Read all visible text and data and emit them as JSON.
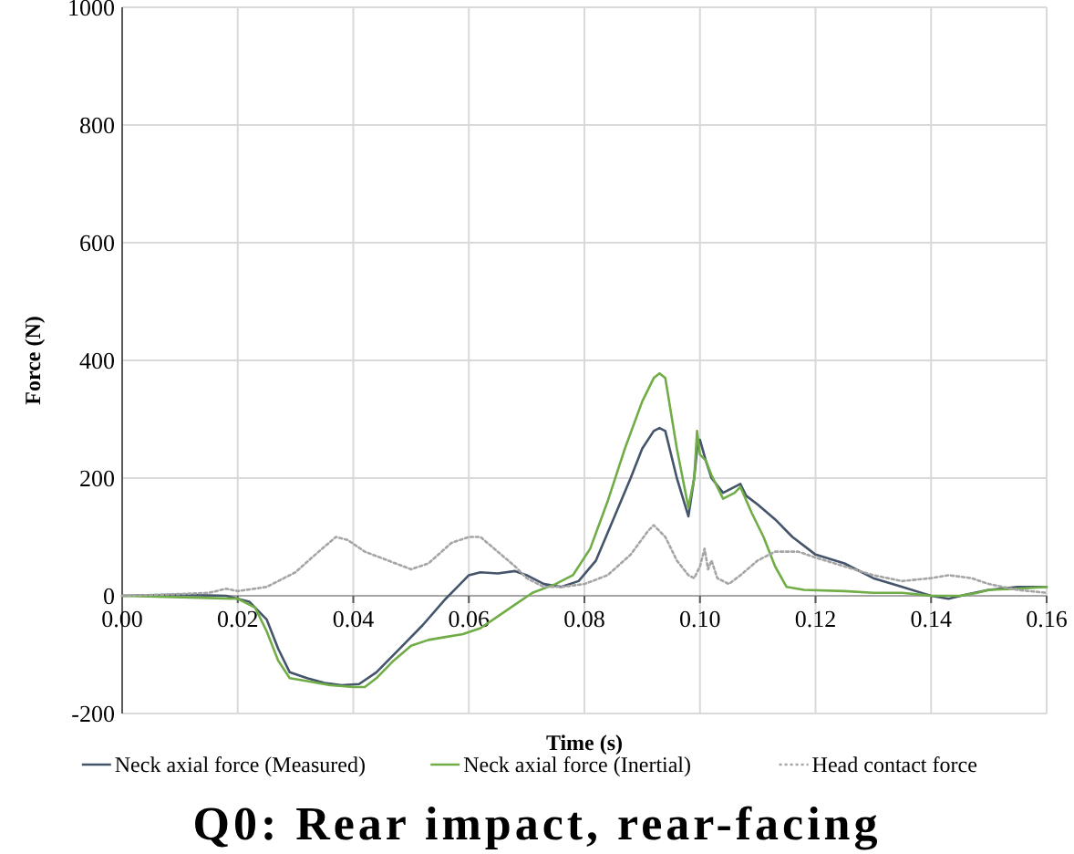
{
  "chart_data": {
    "type": "line",
    "title": "Q0: Rear impact, rear-facing",
    "xlabel": "Time (s)",
    "ylabel": "Force (N)",
    "xlim": [
      0,
      0.16
    ],
    "xticks": [
      {
        "value": 0,
        "label": "0.00"
      },
      0.02,
      0.04,
      0.06,
      0.08,
      {
        "value": 0.1,
        "label": "0.10"
      },
      0.12,
      0.14,
      0.16
    ],
    "ylim": [
      -200,
      1000
    ],
    "yticks": [
      -200,
      0,
      200,
      400,
      600,
      800,
      1000
    ],
    "grid": true,
    "legend": "bottom",
    "series": [
      {
        "name": "Neck axial force (Measured)",
        "color": "#44546a",
        "line_style": "solid",
        "x": [
          0,
          0.01,
          0.018,
          0.022,
          0.025,
          0.027,
          0.029,
          0.032,
          0.035,
          0.038,
          0.041,
          0.044,
          0.048,
          0.052,
          0.056,
          0.058,
          0.06,
          0.062,
          0.065,
          0.068,
          0.07,
          0.073,
          0.076,
          0.079,
          0.082,
          0.085,
          0.088,
          0.09,
          0.092,
          0.093,
          0.094,
          0.096,
          0.098,
          0.099,
          0.0995,
          0.1,
          0.101,
          0.102,
          0.104,
          0.106,
          0.107,
          0.108,
          0.11,
          0.113,
          0.116,
          0.12,
          0.125,
          0.13,
          0.135,
          0.14,
          0.143,
          0.146,
          0.15,
          0.155,
          0.16
        ],
        "values": [
          0,
          2,
          0,
          -10,
          -40,
          -90,
          -130,
          -140,
          -148,
          -152,
          -150,
          -130,
          -90,
          -50,
          -5,
          15,
          35,
          40,
          38,
          42,
          35,
          20,
          15,
          25,
          60,
          130,
          200,
          250,
          280,
          285,
          280,
          200,
          135,
          200,
          250,
          265,
          230,
          200,
          175,
          185,
          190,
          170,
          155,
          130,
          100,
          70,
          55,
          30,
          15,
          0,
          -5,
          2,
          10,
          15,
          15
        ]
      },
      {
        "name": "Neck axial force (Inertial)",
        "color": "#70ad47",
        "line_style": "solid",
        "x": [
          0,
          0.02,
          0.023,
          0.025,
          0.027,
          0.029,
          0.032,
          0.036,
          0.04,
          0.042,
          0.044,
          0.047,
          0.05,
          0.053,
          0.056,
          0.059,
          0.062,
          0.065,
          0.068,
          0.071,
          0.075,
          0.078,
          0.081,
          0.084,
          0.087,
          0.09,
          0.092,
          0.093,
          0.094,
          0.096,
          0.098,
          0.099,
          0.0995,
          0.1,
          0.101,
          0.102,
          0.104,
          0.106,
          0.107,
          0.109,
          0.111,
          0.113,
          0.115,
          0.118,
          0.125,
          0.13,
          0.135,
          0.14,
          0.145,
          0.148,
          0.15,
          0.155,
          0.16
        ],
        "values": [
          0,
          -5,
          -20,
          -60,
          -110,
          -140,
          -145,
          -152,
          -155,
          -155,
          -140,
          -110,
          -85,
          -75,
          -70,
          -65,
          -55,
          -35,
          -15,
          5,
          20,
          35,
          80,
          160,
          250,
          330,
          370,
          378,
          370,
          250,
          150,
          200,
          280,
          240,
          230,
          205,
          165,
          175,
          185,
          140,
          100,
          50,
          15,
          10,
          8,
          5,
          5,
          0,
          0,
          5,
          10,
          12,
          15
        ]
      },
      {
        "name": "Head contact force",
        "color": "#a5a5a5",
        "line_style": "dotted",
        "x": [
          0,
          0.01,
          0.015,
          0.018,
          0.02,
          0.025,
          0.03,
          0.034,
          0.037,
          0.039,
          0.042,
          0.046,
          0.05,
          0.053,
          0.057,
          0.06,
          0.062,
          0.065,
          0.068,
          0.07,
          0.073,
          0.076,
          0.08,
          0.084,
          0.088,
          0.091,
          0.092,
          0.094,
          0.096,
          0.098,
          0.099,
          0.1,
          0.1008,
          0.1014,
          0.102,
          0.103,
          0.105,
          0.107,
          0.11,
          0.113,
          0.117,
          0.12,
          0.125,
          0.13,
          0.135,
          0.14,
          0.143,
          0.147,
          0.15,
          0.155,
          0.16
        ],
        "values": [
          0,
          3,
          5,
          12,
          8,
          15,
          40,
          75,
          100,
          95,
          75,
          60,
          45,
          55,
          90,
          100,
          100,
          75,
          50,
          30,
          15,
          15,
          20,
          35,
          70,
          110,
          120,
          100,
          60,
          35,
          30,
          50,
          80,
          45,
          60,
          30,
          20,
          35,
          60,
          75,
          75,
          65,
          50,
          35,
          25,
          30,
          35,
          30,
          20,
          10,
          5
        ]
      }
    ]
  }
}
